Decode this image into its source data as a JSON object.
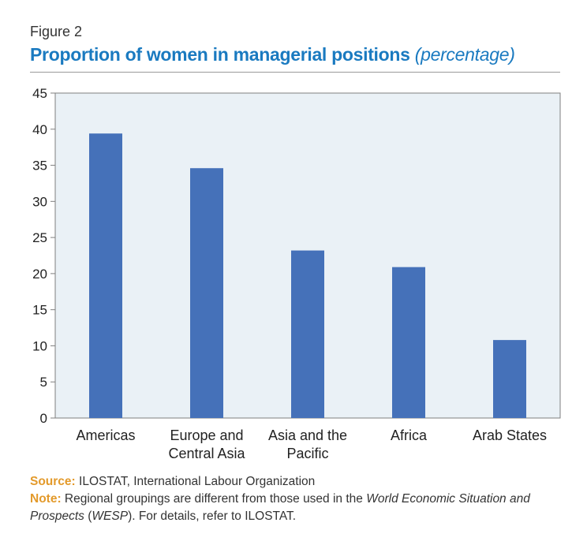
{
  "figure_label": "Figure 2",
  "title_main": "Proportion of women in managerial positions",
  "title_unit_open": "(",
  "title_unit": "percentage",
  "title_unit_close": ")",
  "source": {
    "label": "Source:",
    "text": "ILOSTAT, International Labour Organization"
  },
  "note": {
    "label": "Note:",
    "text_1": "Regional groupings are different from those used in the",
    "italic_1": "World Economic Situation and Prospects",
    "text_2": "(",
    "italic_2": "WESP",
    "text_3": "). For details, refer to ILOSTAT."
  },
  "colors": {
    "bar": "#4571b9",
    "plot_bg": "#eaf1f6",
    "title": "#1a7ac0",
    "accent": "#e39a2b"
  },
  "chart_data": {
    "type": "bar",
    "categories": [
      [
        "Americas"
      ],
      [
        "Europe and",
        "Central Asia"
      ],
      [
        "Asia and the",
        "Pacific"
      ],
      [
        "Africa"
      ],
      [
        "Arab States"
      ]
    ],
    "values": [
      39.4,
      34.6,
      23.2,
      20.9,
      10.8
    ],
    "ylim": [
      0,
      45
    ],
    "yticks": [
      0,
      5,
      10,
      15,
      20,
      25,
      30,
      35,
      40,
      45
    ],
    "grid": false,
    "legend": "none"
  }
}
